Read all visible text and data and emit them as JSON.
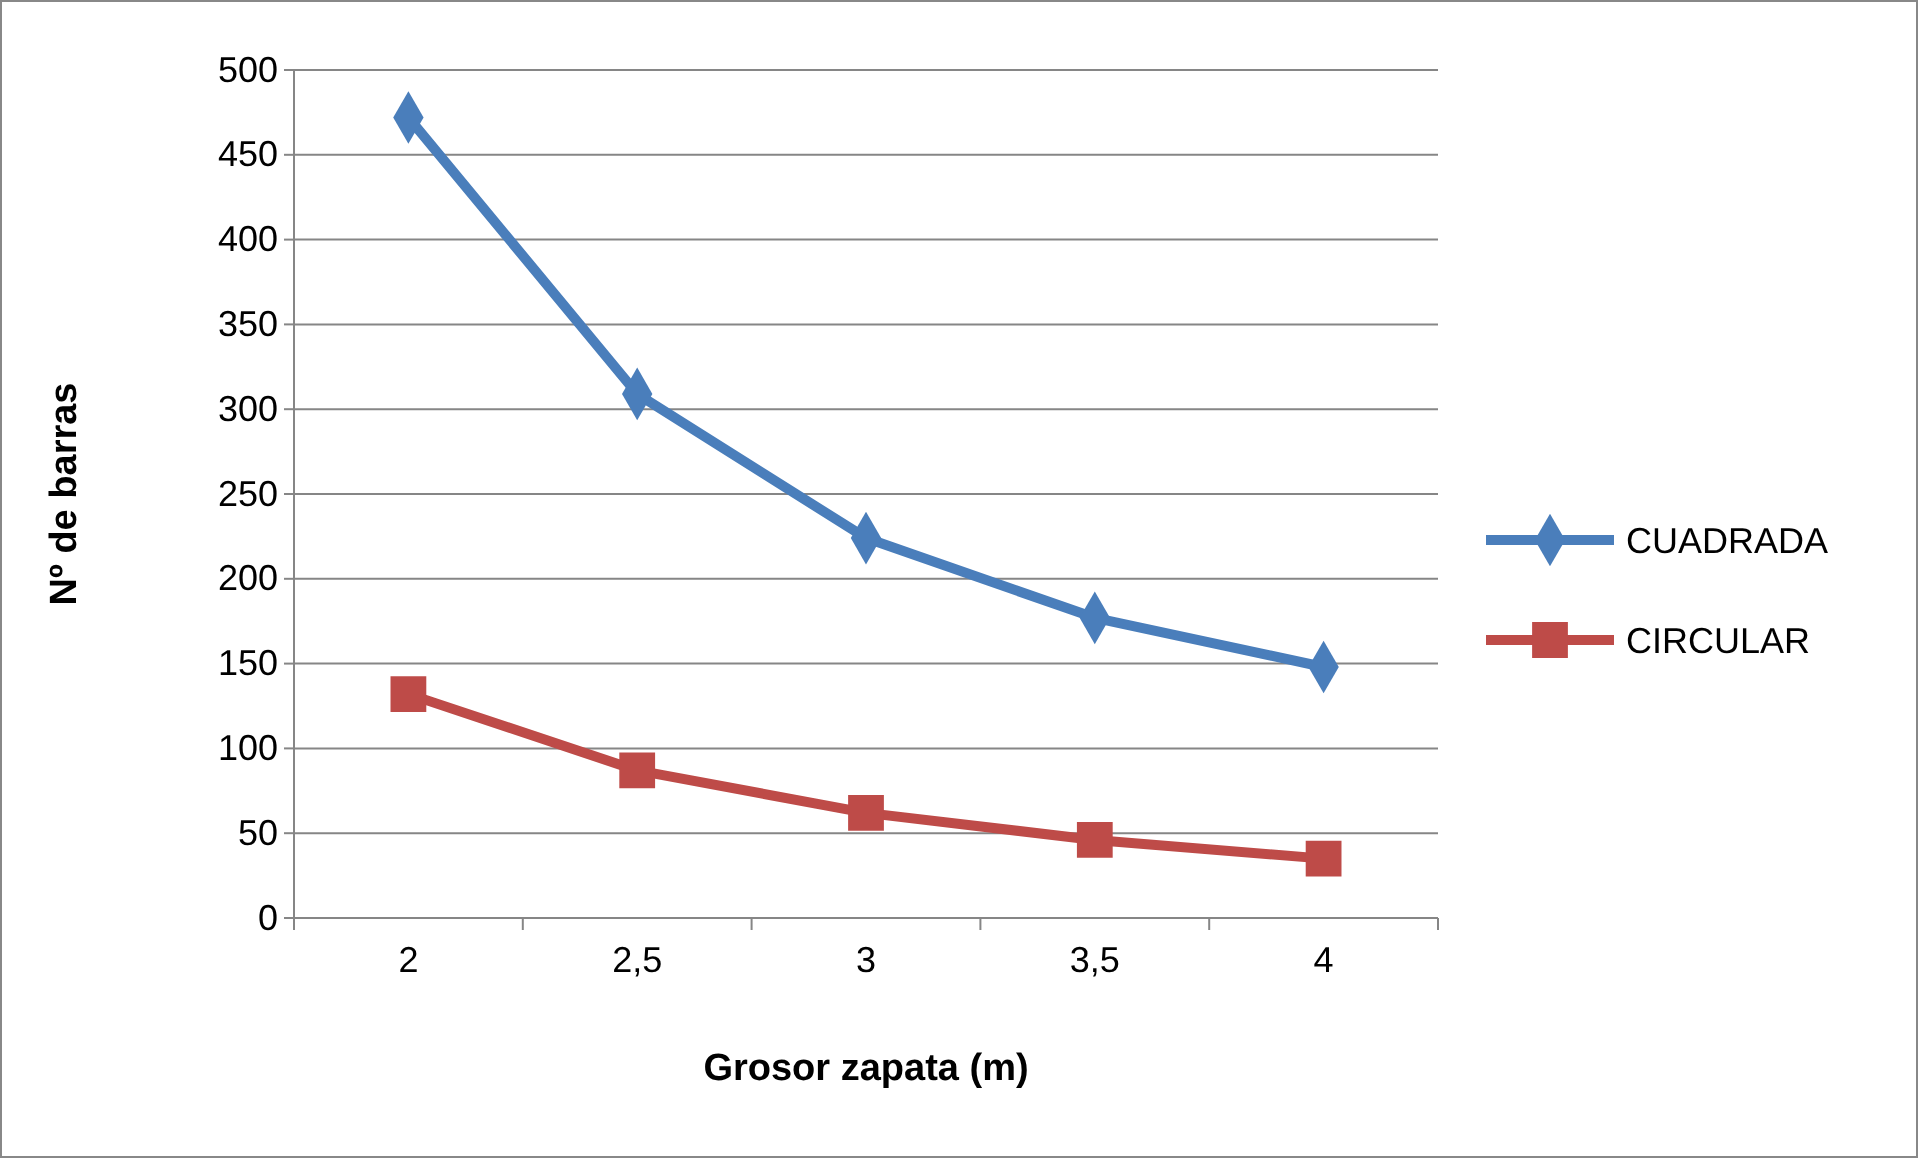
{
  "chart_data": {
    "type": "line",
    "xlabel": "Grosor zapata (m)",
    "ylabel": "Nº de barras",
    "categories": [
      "2",
      "2,5",
      "3",
      "3,5",
      "4"
    ],
    "ylim": [
      0,
      500
    ],
    "yticks": [
      0,
      50,
      100,
      150,
      200,
      250,
      300,
      350,
      400,
      450,
      500
    ],
    "grid": "y",
    "legend": "right",
    "line_style": "solid",
    "series": [
      {
        "name": "CUADRADA",
        "color": "#4a7ebb",
        "marker": "diamond",
        "values": [
          472,
          309,
          224,
          177,
          148
        ]
      },
      {
        "name": "CIRCULAR",
        "color": "#be4b48",
        "marker": "square",
        "values": [
          132,
          87,
          62,
          46,
          35
        ]
      }
    ]
  }
}
